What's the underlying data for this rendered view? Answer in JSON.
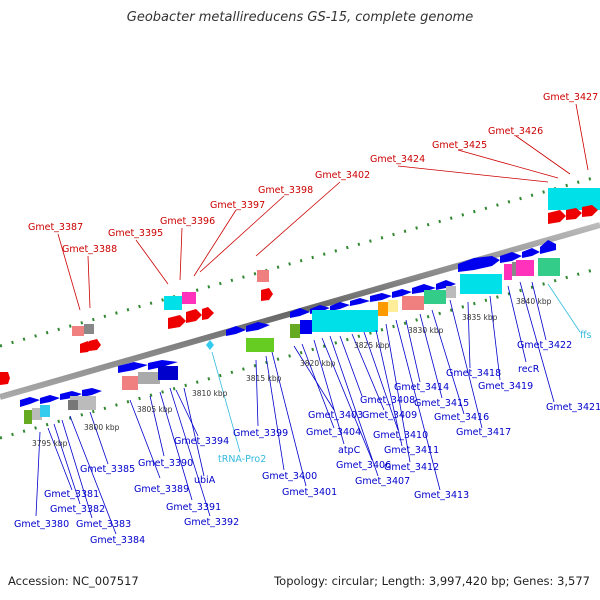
{
  "title": "Geobacter metallireducens GS-15, complete genome",
  "footer": {
    "accession": "Accession: NC_007517",
    "summary": "Topology: circular; Length: 3,997,420 bp; Genes: 3,577"
  },
  "colors": {
    "forward_label": "#cc0000",
    "reverse_label": "#0000cc",
    "rna_label": "#33bbdd",
    "backbone": "#888888",
    "dots": "#338833"
  },
  "ticks": [
    "3795 kbp",
    "3800 kbp",
    "3805 kbp",
    "3810 kbp",
    "3815 kbp",
    "3820 kbp",
    "3825 kbp",
    "3830 kbp",
    "3835 kbp",
    "3840 kbp"
  ],
  "forward_genes": [
    "Gmet_3387",
    "Gmet_3388",
    "Gmet_3395",
    "Gmet_3396",
    "Gmet_3397",
    "Gmet_3398",
    "Gmet_3402",
    "Gmet_3424",
    "Gmet_3425",
    "Gmet_3426",
    "Gmet_3427"
  ],
  "reverse_genes": [
    "Gmet_3380",
    "Gmet_3381",
    "Gmet_3382",
    "Gmet_3383",
    "Gmet_3384",
    "Gmet_3385",
    "Gmet_3389",
    "Gmet_3390",
    "Gmet_3391",
    "Gmet_3392",
    "Gmet_3394",
    "ubiA",
    "Gmet_3399",
    "Gmet_3400",
    "Gmet_3401",
    "Gmet_3403",
    "Gmet_3404",
    "atpC",
    "Gmet_3406",
    "Gmet_3407",
    "Gmet_3408",
    "Gmet_3409",
    "Gmet_3410",
    "Gmet_3411",
    "Gmet_3412",
    "Gmet_3413",
    "Gmet_3414",
    "Gmet_3415",
    "Gmet_3416",
    "Gmet_3417",
    "Gmet_3418",
    "Gmet_3419",
    "recR",
    "Gmet_3421",
    "Gmet_3422"
  ],
  "rna_genes": [
    "tRNA-Pro2",
    "ffs"
  ]
}
